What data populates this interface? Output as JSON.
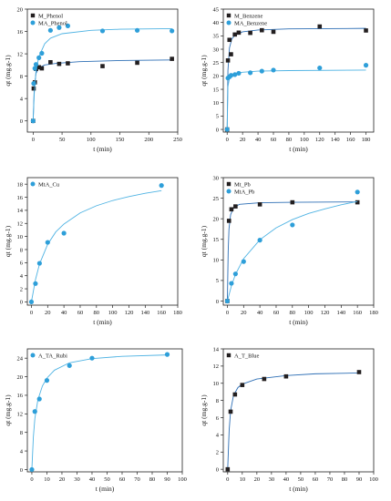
{
  "chart_data": [
    {
      "type": "scatter",
      "xlabel": "t (min)",
      "ylabel": "qt (mg.g-1)",
      "xlim": [
        -10,
        250
      ],
      "ylim": [
        -2,
        20
      ],
      "xticks": [
        0,
        50,
        100,
        150,
        200,
        250
      ],
      "yticks": [
        0,
        4,
        8,
        12,
        16,
        20
      ],
      "legend_position": "top-left",
      "series": [
        {
          "name": "M_Phenol",
          "marker": "square",
          "color": "#231f20",
          "x": [
            0,
            1,
            3,
            5,
            10,
            15,
            30,
            45,
            60,
            120,
            180,
            240
          ],
          "y": [
            0,
            5.8,
            6.9,
            9.3,
            9.6,
            9.4,
            10.5,
            10.2,
            10.3,
            9.8,
            10.4,
            11.1
          ],
          "fit": [
            [
              0,
              0
            ],
            [
              2,
              6.0
            ],
            [
              5,
              8.5
            ],
            [
              10,
              9.5
            ],
            [
              20,
              10.0
            ],
            [
              40,
              10.3
            ],
            [
              80,
              10.6
            ],
            [
              150,
              10.8
            ],
            [
              240,
              10.9
            ]
          ]
        },
        {
          "name": "MA_Phenol",
          "marker": "circle",
          "color": "#2e9fd9",
          "x": [
            0,
            1,
            3,
            5,
            10,
            15,
            30,
            45,
            60,
            120,
            180,
            240
          ],
          "y": [
            0,
            6.7,
            9.4,
            10.1,
            11.3,
            12.1,
            16.2,
            16.7,
            17.0,
            16.1,
            16.2,
            16.1
          ],
          "fit": [
            [
              0,
              0
            ],
            [
              2,
              5.0
            ],
            [
              5,
              9.0
            ],
            [
              10,
              11.5
            ],
            [
              20,
              13.8
            ],
            [
              30,
              14.8
            ],
            [
              50,
              15.6
            ],
            [
              100,
              16.2
            ],
            [
              150,
              16.4
            ],
            [
              240,
              16.5
            ]
          ]
        }
      ]
    },
    {
      "type": "scatter",
      "xlabel": "t (min)",
      "ylabel": "qt (mg.g-1)",
      "xlim": [
        -5,
        190
      ],
      "ylim": [
        -1,
        45
      ],
      "xticks": [
        0,
        20,
        40,
        60,
        80,
        100,
        120,
        140,
        160,
        180
      ],
      "yticks": [
        0,
        5,
        10,
        15,
        20,
        25,
        30,
        35,
        40,
        45
      ],
      "legend_position": "top-left",
      "series": [
        {
          "name": "M_Benzene",
          "marker": "square",
          "color": "#231f20",
          "x": [
            0,
            1,
            3,
            5,
            10,
            15,
            30,
            45,
            60,
            120,
            180
          ],
          "y": [
            0,
            25.8,
            33.5,
            28.1,
            35.5,
            36.2,
            36.1,
            37.1,
            36.5,
            38.5,
            37.0
          ],
          "fit": [
            [
              0,
              0
            ],
            [
              1,
              22.0
            ],
            [
              3,
              30.5
            ],
            [
              6,
              33.8
            ],
            [
              10,
              35.2
            ],
            [
              20,
              36.5
            ],
            [
              40,
              37.2
            ],
            [
              80,
              37.6
            ],
            [
              180,
              37.8
            ]
          ]
        },
        {
          "name": "MA_Benzene",
          "marker": "circle",
          "color": "#2e9fd9",
          "x": [
            0,
            1,
            3,
            5,
            10,
            15,
            30,
            45,
            60,
            120,
            180
          ],
          "y": [
            0,
            19.2,
            19.7,
            20.2,
            20.5,
            21.0,
            21.2,
            21.8,
            22.2,
            23.0,
            24.0
          ],
          "fit": [
            [
              0,
              0
            ],
            [
              1,
              16.0
            ],
            [
              3,
              19.2
            ],
            [
              6,
              20.3
            ],
            [
              10,
              20.9
            ],
            [
              20,
              21.4
            ],
            [
              40,
              21.8
            ],
            [
              80,
              22.0
            ],
            [
              180,
              22.2
            ]
          ]
        }
      ]
    },
    {
      "type": "scatter",
      "xlabel": "t (min)",
      "ylabel": "qt (mg.g-1)",
      "xlim": [
        -5,
        180
      ],
      "ylim": [
        -0.5,
        19
      ],
      "xticks": [
        0,
        20,
        40,
        60,
        80,
        100,
        120,
        140,
        160,
        180
      ],
      "yticks": [
        0,
        2,
        4,
        6,
        8,
        10,
        12,
        14,
        16,
        18
      ],
      "legend_position": "top-left",
      "series": [
        {
          "name": "MtA_Cu",
          "marker": "circle",
          "color": "#2e9fd9",
          "x": [
            0,
            5,
            10,
            20,
            40,
            160
          ],
          "y": [
            0,
            2.8,
            5.9,
            9.1,
            10.5,
            17.8
          ],
          "fit": [
            [
              0,
              0
            ],
            [
              5,
              3.4
            ],
            [
              10,
              5.8
            ],
            [
              20,
              8.8
            ],
            [
              30,
              10.7
            ],
            [
              40,
              11.9
            ],
            [
              60,
              13.6
            ],
            [
              80,
              14.7
            ],
            [
              100,
              15.5
            ],
            [
              120,
              16.1
            ],
            [
              140,
              16.6
            ],
            [
              160,
              17.0
            ]
          ]
        }
      ]
    },
    {
      "type": "scatter",
      "xlabel": "t (min)",
      "ylabel": "qt (mg.g-1)",
      "xlim": [
        -5,
        180
      ],
      "ylim": [
        -1,
        30
      ],
      "xticks": [
        0,
        20,
        40,
        60,
        80,
        100,
        120,
        140,
        160,
        180
      ],
      "yticks": [
        0,
        5,
        10,
        15,
        20,
        25,
        30
      ],
      "legend_position": "top-left",
      "series": [
        {
          "name": "Mt_Pb",
          "marker": "square",
          "color": "#231f20",
          "x": [
            0,
            2,
            5,
            10,
            40,
            80,
            160
          ],
          "y": [
            0,
            19.5,
            22.3,
            23.0,
            23.5,
            24.0,
            24.0
          ],
          "fit": [
            [
              0,
              0
            ],
            [
              1,
              12.0
            ],
            [
              2,
              17.5
            ],
            [
              4,
              21.0
            ],
            [
              8,
              22.8
            ],
            [
              15,
              23.5
            ],
            [
              40,
              23.9
            ],
            [
              80,
              24.0
            ],
            [
              160,
              24.1
            ]
          ]
        },
        {
          "name": "MtA_Pb",
          "marker": "circle",
          "color": "#2e9fd9",
          "x": [
            0,
            5,
            10,
            20,
            40,
            80,
            160
          ],
          "y": [
            0,
            4.3,
            6.6,
            9.6,
            14.8,
            18.5,
            26.5
          ],
          "fit": [
            [
              0,
              0
            ],
            [
              5,
              3.7
            ],
            [
              10,
              6.5
            ],
            [
              20,
              10.3
            ],
            [
              40,
              14.9
            ],
            [
              60,
              17.8
            ],
            [
              80,
              19.8
            ],
            [
              100,
              21.3
            ],
            [
              120,
              22.4
            ],
            [
              140,
              23.4
            ],
            [
              160,
              24.2
            ]
          ]
        }
      ]
    },
    {
      "type": "scatter",
      "xlabel": "t (min)",
      "ylabel": "qt (mg.g-1)",
      "xlim": [
        -3,
        100
      ],
      "ylim": [
        -0.5,
        26
      ],
      "xticks": [
        0,
        10,
        20,
        30,
        40,
        50,
        60,
        70,
        80,
        90,
        100
      ],
      "yticks": [
        0,
        4,
        8,
        12,
        16,
        20,
        24
      ],
      "legend_position": "top-left",
      "series": [
        {
          "name": "A_TA_Rubi",
          "marker": "circle",
          "color": "#2e9fd9",
          "x": [
            0,
            2,
            5,
            10,
            25,
            40,
            90
          ],
          "y": [
            0,
            12.5,
            15.2,
            19.2,
            22.4,
            24.0,
            24.8
          ],
          "fit": [
            [
              0,
              0
            ],
            [
              1,
              7.0
            ],
            [
              2,
              11.0
            ],
            [
              4,
              15.0
            ],
            [
              7,
              18.0
            ],
            [
              10,
              19.7
            ],
            [
              15,
              21.4
            ],
            [
              25,
              23.0
            ],
            [
              40,
              23.9
            ],
            [
              60,
              24.4
            ],
            [
              90,
              24.7
            ]
          ]
        }
      ]
    },
    {
      "type": "scatter",
      "xlabel": "t (min)",
      "ylabel": "qt (mg.g-1)",
      "xlim": [
        -3,
        100
      ],
      "ylim": [
        -0.3,
        14
      ],
      "xticks": [
        0,
        10,
        20,
        30,
        40,
        50,
        60,
        70,
        80,
        90,
        100
      ],
      "yticks": [
        0,
        2,
        4,
        6,
        8,
        10,
        12,
        14
      ],
      "legend_position": "top-left",
      "series": [
        {
          "name": "A_T_Blue",
          "marker": "square",
          "color": "#231f20",
          "x": [
            0,
            2,
            5,
            10,
            25,
            40,
            90
          ],
          "y": [
            0,
            6.7,
            8.7,
            9.8,
            10.5,
            10.8,
            11.3
          ],
          "fit": [
            [
              0,
              0
            ],
            [
              1,
              4.5
            ],
            [
              2,
              6.8
            ],
            [
              4,
              8.6
            ],
            [
              7,
              9.5
            ],
            [
              10,
              9.9
            ],
            [
              20,
              10.5
            ],
            [
              40,
              10.9
            ],
            [
              60,
              11.1
            ],
            [
              90,
              11.2
            ]
          ]
        }
      ]
    }
  ]
}
